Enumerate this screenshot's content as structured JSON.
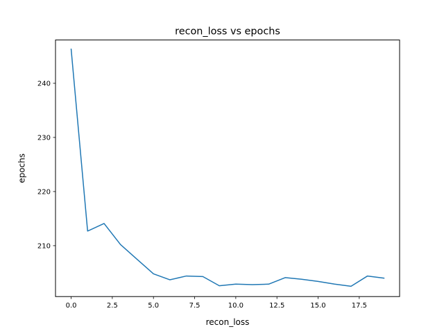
{
  "chart_data": {
    "type": "line",
    "title": "recon_loss vs epochs",
    "xlabel": "recon_loss",
    "ylabel": "epochs",
    "xlim": [
      -0.95,
      19.95
    ],
    "ylim": [
      200.6,
      248.0
    ],
    "xticks": [
      0.0,
      2.5,
      5.0,
      7.5,
      10.0,
      12.5,
      15.0,
      17.5
    ],
    "xtick_labels": [
      "0.0",
      "2.5",
      "5.0",
      "7.5",
      "10.0",
      "12.5",
      "15.0",
      "17.5"
    ],
    "yticks": [
      210,
      220,
      230,
      240
    ],
    "ytick_labels": [
      "210",
      "220",
      "230",
      "240"
    ],
    "grid": false,
    "legend": "none",
    "colors": {
      "line": "#1f77b4",
      "axes": "#000000",
      "background": "#ffffff"
    },
    "series": [
      {
        "x": [
          0,
          1,
          2,
          3,
          4,
          5,
          6,
          7,
          8,
          9,
          10,
          11,
          12,
          13,
          14,
          15,
          16,
          17,
          18,
          19
        ],
        "y": [
          246.3,
          212.7,
          214.1,
          210.2,
          207.5,
          204.8,
          203.7,
          204.4,
          204.3,
          202.6,
          202.9,
          202.8,
          202.9,
          204.1,
          203.8,
          203.4,
          202.9,
          202.5,
          204.4,
          204.0
        ]
      }
    ]
  }
}
